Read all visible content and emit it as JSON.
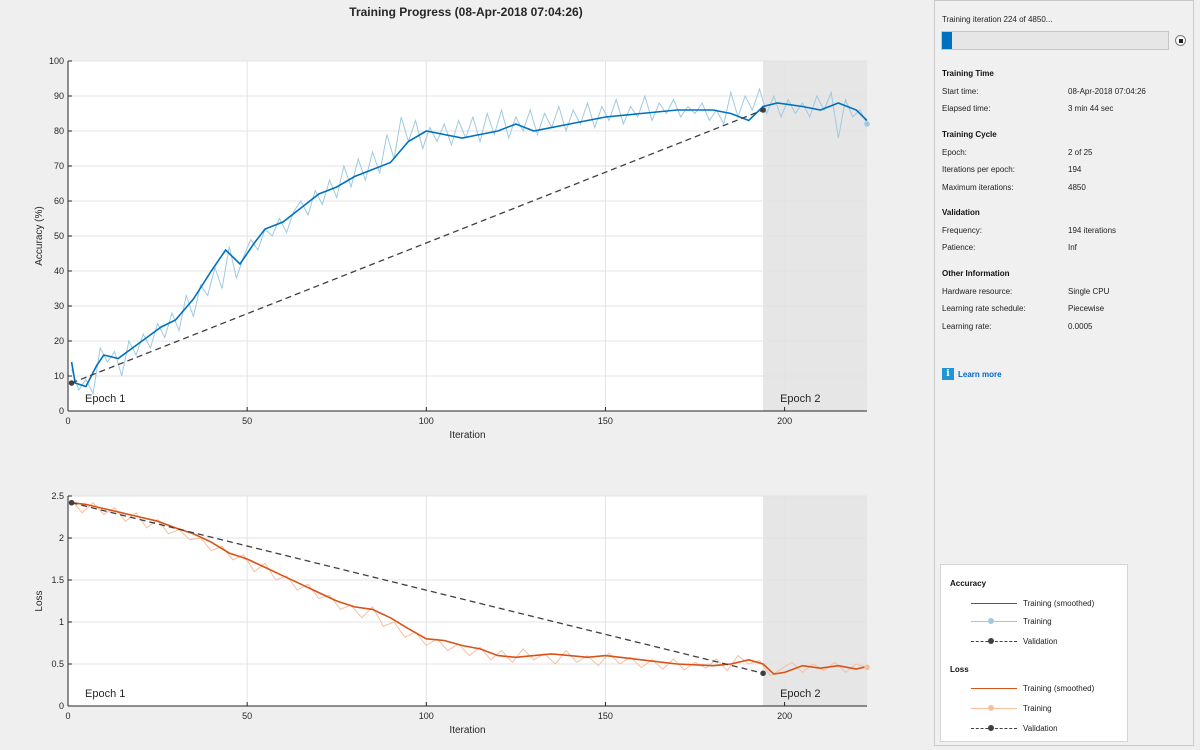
{
  "window_title": "Training Progress (08-Apr-2018 07:04:26)",
  "panel": {
    "status": "Training iteration 224 of 4850...",
    "progress": 0.0462,
    "sections": [
      {
        "title": "Training Time",
        "rows": [
          {
            "label": "Start time:",
            "value": "08-Apr-2018 07:04:26"
          },
          {
            "label": "Elapsed time:",
            "value": "3 min 44 sec"
          }
        ]
      },
      {
        "title": "Training Cycle",
        "rows": [
          {
            "label": "Epoch:",
            "value": "2 of 25"
          },
          {
            "label": "Iterations per epoch:",
            "value": "194"
          },
          {
            "label": "Maximum iterations:",
            "value": "4850"
          }
        ]
      },
      {
        "title": "Validation",
        "rows": [
          {
            "label": "Frequency:",
            "value": "194 iterations"
          },
          {
            "label": "Patience:",
            "value": "Inf"
          }
        ]
      },
      {
        "title": "Other Information",
        "rows": [
          {
            "label": "Hardware resource:",
            "value": "Single CPU"
          },
          {
            "label": "Learning rate schedule:",
            "value": "Piecewise"
          },
          {
            "label": "Learning rate:",
            "value": "0.0005"
          }
        ]
      }
    ],
    "learn_more": "Learn more",
    "info_icon": "info-icon",
    "stop_icon": "stop-icon"
  },
  "legend": {
    "accuracy_title": "Accuracy",
    "loss_title": "Loss",
    "items": {
      "smoothed": "Training (smoothed)",
      "training": "Training",
      "validation": "Validation"
    }
  },
  "colors": {
    "accuracy_smoothed": "#0072bd",
    "accuracy_raw": "#9ecae1",
    "loss_smoothed": "#d95319",
    "loss_raw": "#f6bf9f",
    "validation": "#404040",
    "epoch_shade": "#e6e6e6"
  },
  "chart_data": [
    {
      "type": "line",
      "title": "",
      "xlabel": "Iteration",
      "ylabel": "Accuracy (%)",
      "xlim": [
        0,
        223
      ],
      "ylim": [
        0,
        100
      ],
      "xticks": [
        0,
        50,
        100,
        150,
        200
      ],
      "yticks": [
        0,
        10,
        20,
        30,
        40,
        50,
        60,
        70,
        80,
        90,
        100
      ],
      "epochs": [
        {
          "label": "Epoch 1",
          "start": 0,
          "end": 194
        },
        {
          "label": "Epoch 2",
          "start": 194,
          "end": 223
        }
      ],
      "series": [
        {
          "name": "Training (smoothed)",
          "x": [
            1,
            2,
            5,
            8,
            10,
            14,
            18,
            22,
            26,
            30,
            35,
            40,
            44,
            48,
            52,
            55,
            60,
            65,
            70,
            75,
            80,
            85,
            90,
            95,
            100,
            105,
            110,
            115,
            120,
            125,
            130,
            140,
            150,
            160,
            170,
            180,
            185,
            190,
            194,
            198,
            205,
            210,
            215,
            220,
            223
          ],
          "y": [
            14,
            8,
            7,
            13,
            16,
            15,
            18,
            21,
            24,
            26,
            32,
            40,
            46,
            42,
            48,
            52,
            54,
            58,
            62,
            64,
            67,
            69,
            71,
            77,
            80,
            79,
            78,
            79,
            80,
            82,
            80,
            82,
            84,
            85,
            86,
            86,
            85,
            83,
            87,
            88,
            87,
            86,
            88,
            86,
            83
          ]
        },
        {
          "name": "Training",
          "x": [
            1,
            3,
            5,
            7,
            9,
            11,
            13,
            15,
            17,
            19,
            21,
            23,
            25,
            27,
            29,
            31,
            33,
            35,
            37,
            39,
            41,
            43,
            45,
            47,
            49,
            51,
            53,
            55,
            57,
            59,
            61,
            63,
            65,
            67,
            69,
            71,
            73,
            75,
            77,
            79,
            81,
            83,
            85,
            87,
            89,
            91,
            93,
            95,
            97,
            99,
            101,
            103,
            105,
            107,
            109,
            111,
            113,
            115,
            117,
            119,
            121,
            123,
            125,
            127,
            129,
            131,
            133,
            135,
            137,
            139,
            141,
            143,
            145,
            147,
            149,
            151,
            153,
            155,
            157,
            159,
            161,
            163,
            165,
            167,
            169,
            171,
            173,
            175,
            177,
            179,
            181,
            183,
            185,
            187,
            189,
            191,
            193,
            195,
            197,
            199,
            201,
            203,
            205,
            207,
            209,
            211,
            213,
            215,
            217,
            219,
            221,
            223
          ],
          "y": [
            12,
            6,
            9,
            5,
            18,
            14,
            17,
            10,
            20,
            16,
            22,
            18,
            25,
            21,
            28,
            23,
            33,
            27,
            36,
            33,
            41,
            35,
            47,
            38,
            44,
            49,
            46,
            52,
            50,
            55,
            51,
            57,
            60,
            56,
            63,
            59,
            66,
            61,
            70,
            64,
            72,
            66,
            74,
            68,
            79,
            72,
            84,
            77,
            83,
            75,
            81,
            77,
            82,
            76,
            83,
            78,
            84,
            77,
            85,
            79,
            86,
            78,
            84,
            80,
            86,
            79,
            85,
            81,
            87,
            80,
            86,
            82,
            88,
            81,
            87,
            83,
            89,
            82,
            87,
            84,
            90,
            83,
            88,
            85,
            89,
            84,
            87,
            85,
            88,
            83,
            86,
            82,
            91,
            84,
            90,
            86,
            92,
            85,
            90,
            84,
            89,
            85,
            88,
            84,
            90,
            86,
            91,
            78,
            89,
            84,
            86,
            82
          ]
        },
        {
          "name": "Validation",
          "x": [
            1,
            194
          ],
          "y": [
            8,
            86
          ]
        }
      ]
    },
    {
      "type": "line",
      "title": "",
      "xlabel": "Iteration",
      "ylabel": "Loss",
      "xlim": [
        0,
        223
      ],
      "ylim": [
        0,
        2.5
      ],
      "xticks": [
        0,
        50,
        100,
        150,
        200
      ],
      "yticks": [
        0,
        0.5,
        1,
        1.5,
        2,
        2.5
      ],
      "epochs": [
        {
          "label": "Epoch 1",
          "start": 0,
          "end": 194
        },
        {
          "label": "Epoch 2",
          "start": 194,
          "end": 223
        }
      ],
      "series": [
        {
          "name": "Training (smoothed)",
          "x": [
            1,
            5,
            10,
            15,
            20,
            25,
            30,
            35,
            40,
            45,
            50,
            55,
            60,
            65,
            70,
            75,
            80,
            85,
            90,
            95,
            100,
            105,
            110,
            115,
            120,
            125,
            130,
            135,
            140,
            145,
            150,
            160,
            170,
            180,
            185,
            190,
            194,
            197,
            200,
            205,
            210,
            215,
            220,
            223
          ],
          "y": [
            2.42,
            2.4,
            2.35,
            2.3,
            2.25,
            2.2,
            2.12,
            2.05,
            1.95,
            1.82,
            1.75,
            1.65,
            1.55,
            1.45,
            1.35,
            1.25,
            1.18,
            1.15,
            1.05,
            0.92,
            0.8,
            0.78,
            0.72,
            0.68,
            0.6,
            0.58,
            0.6,
            0.62,
            0.6,
            0.58,
            0.6,
            0.55,
            0.5,
            0.48,
            0.5,
            0.55,
            0.5,
            0.38,
            0.4,
            0.48,
            0.45,
            0.48,
            0.44,
            0.47
          ]
        },
        {
          "name": "Training",
          "x": [
            1,
            4,
            7,
            10,
            13,
            16,
            19,
            22,
            25,
            28,
            31,
            34,
            37,
            40,
            43,
            46,
            49,
            52,
            55,
            58,
            61,
            64,
            67,
            70,
            73,
            76,
            79,
            82,
            85,
            88,
            91,
            94,
            97,
            100,
            103,
            106,
            109,
            112,
            115,
            118,
            121,
            124,
            127,
            130,
            133,
            136,
            139,
            142,
            145,
            148,
            151,
            154,
            157,
            160,
            163,
            166,
            169,
            172,
            175,
            178,
            181,
            184,
            187,
            190,
            193,
            196,
            199,
            202,
            205,
            208,
            211,
            214,
            217,
            220,
            223
          ],
          "y": [
            2.45,
            2.3,
            2.42,
            2.28,
            2.36,
            2.2,
            2.3,
            2.12,
            2.22,
            2.05,
            2.1,
            1.98,
            2.0,
            1.85,
            1.9,
            1.74,
            1.8,
            1.6,
            1.7,
            1.5,
            1.55,
            1.38,
            1.45,
            1.28,
            1.32,
            1.15,
            1.2,
            1.05,
            1.18,
            0.95,
            1.0,
            0.82,
            0.88,
            0.72,
            0.8,
            0.66,
            0.74,
            0.6,
            0.7,
            0.55,
            0.66,
            0.52,
            0.68,
            0.55,
            0.62,
            0.5,
            0.66,
            0.52,
            0.6,
            0.48,
            0.63,
            0.5,
            0.58,
            0.46,
            0.55,
            0.44,
            0.56,
            0.43,
            0.52,
            0.45,
            0.56,
            0.42,
            0.6,
            0.5,
            0.54,
            0.36,
            0.44,
            0.52,
            0.4,
            0.5,
            0.42,
            0.52,
            0.4,
            0.5,
            0.46
          ]
        },
        {
          "name": "Validation",
          "x": [
            1,
            194
          ],
          "y": [
            2.42,
            0.39
          ]
        }
      ]
    }
  ]
}
